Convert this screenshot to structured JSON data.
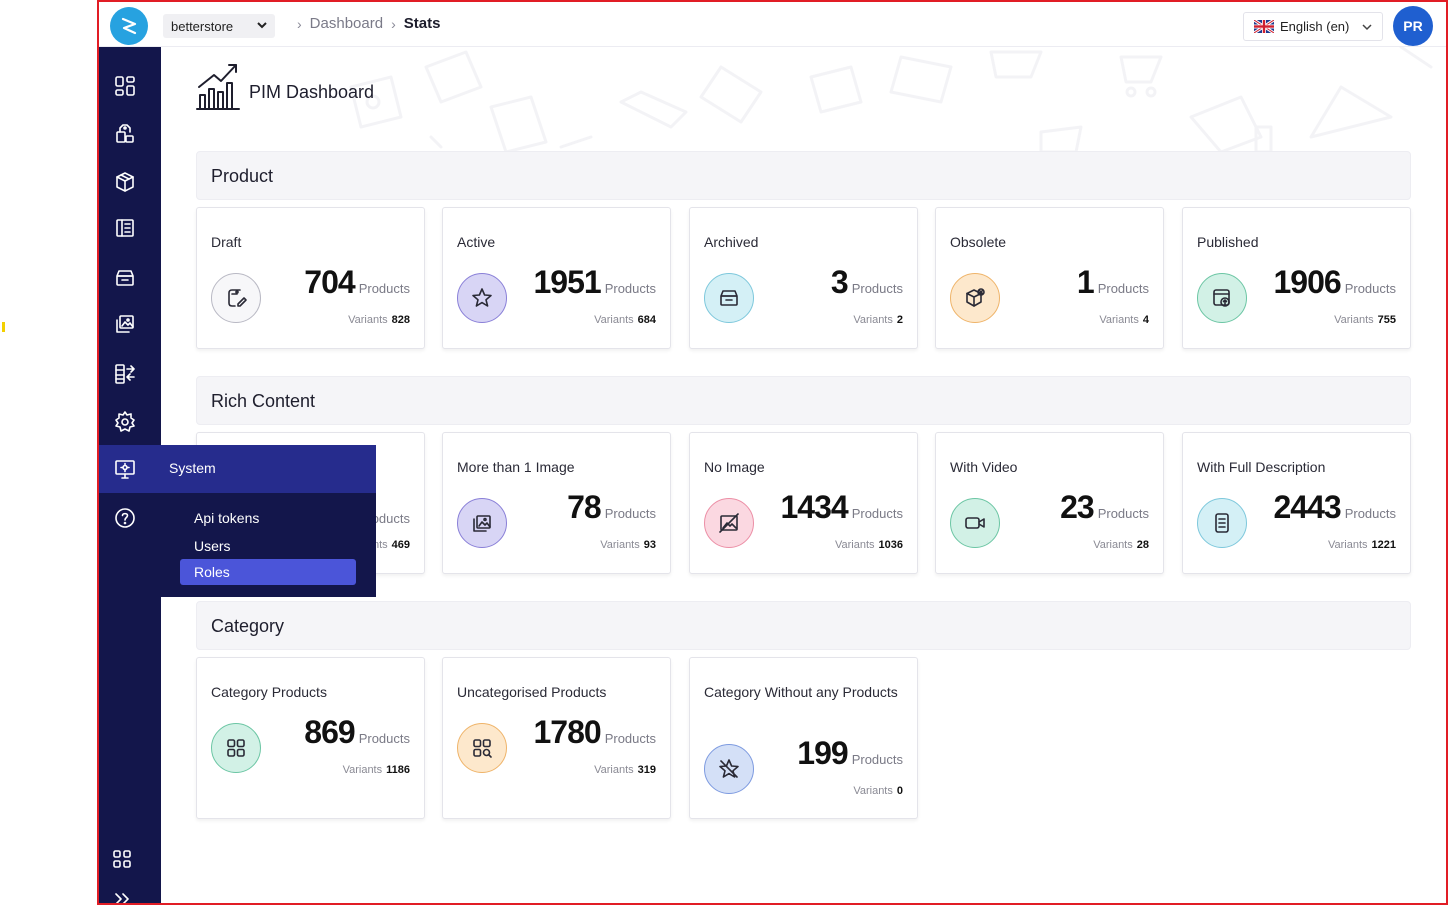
{
  "topbar": {
    "store": "betterstore",
    "breadcrumb": [
      "Dashboard",
      "Stats"
    ],
    "language": "English (en)",
    "avatar_initials": "PR"
  },
  "sidebar": {
    "icons": [
      "dashboard-icon",
      "products-icon",
      "package-icon",
      "catalog-icon",
      "archive-icon",
      "media-icon",
      "import-export-icon",
      "settings-icon",
      "system-icon",
      "help-icon",
      "apps-icon",
      "expand-icon"
    ],
    "flyout": {
      "title": "System",
      "items": [
        "Api tokens",
        "Users",
        "Roles"
      ],
      "active": "Roles"
    }
  },
  "page": {
    "title": "PIM Dashboard"
  },
  "sections": {
    "product": {
      "title": "Product",
      "cards": [
        {
          "title": "Draft",
          "count": "704",
          "unit": "Products",
          "variants_label": "Variants",
          "variants": "828",
          "icon": "draft-icon"
        },
        {
          "title": "Active",
          "count": "1951",
          "unit": "Products",
          "variants_label": "Variants",
          "variants": "684",
          "icon": "star-icon"
        },
        {
          "title": "Archived",
          "count": "3",
          "unit": "Products",
          "variants_label": "Variants",
          "variants": "2",
          "icon": "archive-box-icon"
        },
        {
          "title": "Obsolete",
          "count": "1",
          "unit": "Products",
          "variants_label": "Variants",
          "variants": "4",
          "icon": "obsolete-box-icon"
        },
        {
          "title": "Published",
          "count": "1906",
          "unit": "Products",
          "variants_label": "Variants",
          "variants": "755",
          "icon": "publish-icon"
        }
      ]
    },
    "rich": {
      "title": "Rich Content",
      "cards": [
        {
          "title": "",
          "count": "",
          "unit": "oducts",
          "variants_label": "nts",
          "variants": "469",
          "icon": ""
        },
        {
          "title": "More than 1 Image",
          "count": "78",
          "unit": "Products",
          "variants_label": "Variants",
          "variants": "93",
          "icon": "images-icon"
        },
        {
          "title": "No Image",
          "count": "1434",
          "unit": "Products",
          "variants_label": "Variants",
          "variants": "1036",
          "icon": "no-image-icon"
        },
        {
          "title": "With Video",
          "count": "23",
          "unit": "Products",
          "variants_label": "Variants",
          "variants": "28",
          "icon": "video-icon"
        },
        {
          "title": "With Full Description",
          "count": "2443",
          "unit": "Products",
          "variants_label": "Variants",
          "variants": "1221",
          "icon": "description-icon"
        }
      ]
    },
    "category": {
      "title": "Category",
      "cards": [
        {
          "title": "Category Products",
          "count": "869",
          "unit": "Products",
          "variants_label": "Variants",
          "variants": "1186",
          "icon": "grid-icon"
        },
        {
          "title": "Uncategorised Products",
          "count": "1780",
          "unit": "Products",
          "variants_label": "Variants",
          "variants": "319",
          "icon": "grid-search-icon"
        },
        {
          "title": "Category Without any Products",
          "count": "199",
          "unit": "Products",
          "variants_label": "Variants",
          "variants": "0",
          "icon": "star-off-icon"
        }
      ]
    }
  },
  "colors": {
    "sidebar": "#13164b",
    "flyout_header": "#262c8d",
    "active_item": "#4b55d9",
    "logo": "#27a2e0",
    "avatar": "#1f5fd0"
  }
}
